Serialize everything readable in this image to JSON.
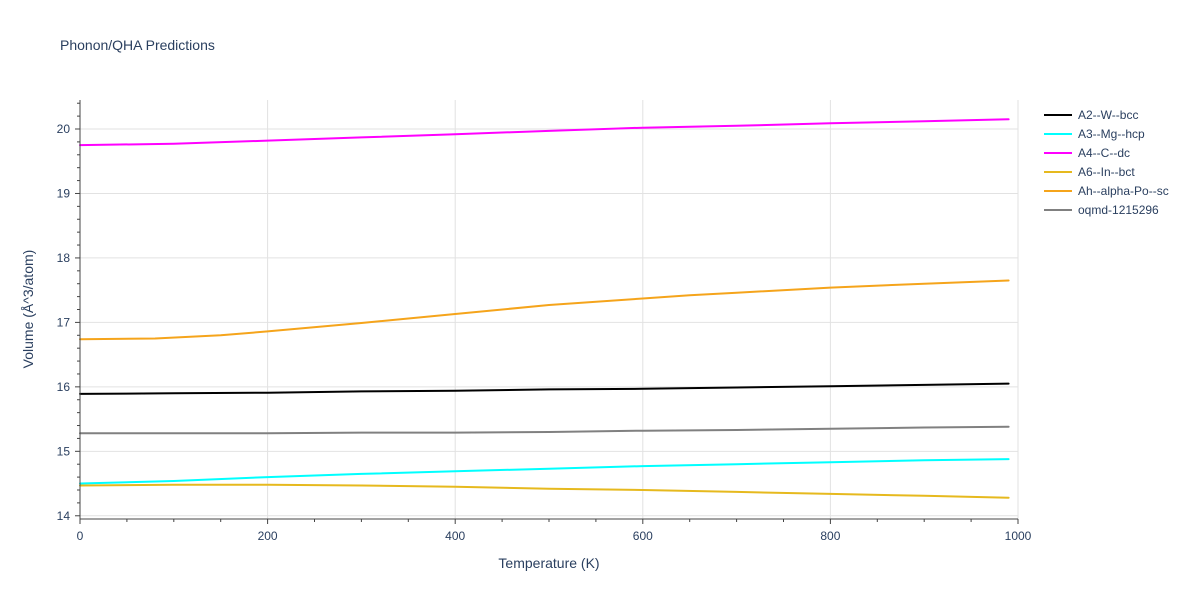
{
  "chart_data": {
    "type": "line",
    "title": "Phonon/QHA Predictions",
    "xlabel": "Temperature (K)",
    "ylabel": "Volume (Å^3/atom)",
    "xlim": [
      0,
      1000
    ],
    "ylim": [
      13.95,
      20.45
    ],
    "xticks": [
      0,
      200,
      400,
      600,
      800,
      1000
    ],
    "yticks": [
      14,
      15,
      16,
      17,
      18,
      19,
      20
    ],
    "grid": true,
    "legend_position": "top-right",
    "series": [
      {
        "name": "A2--W--bcc",
        "color": "#000000",
        "x": [
          0,
          100,
          200,
          300,
          400,
          500,
          600,
          700,
          800,
          900,
          990
        ],
        "y": [
          15.89,
          15.9,
          15.91,
          15.93,
          15.94,
          15.96,
          15.97,
          15.99,
          16.01,
          16.03,
          16.05
        ]
      },
      {
        "name": "A3--Mg--hcp",
        "color": "#00ffff",
        "x": [
          0,
          100,
          200,
          300,
          400,
          500,
          600,
          700,
          800,
          900,
          990
        ],
        "y": [
          14.5,
          14.54,
          14.6,
          14.65,
          14.69,
          14.73,
          14.77,
          14.8,
          14.83,
          14.86,
          14.88
        ]
      },
      {
        "name": "A4--C--dc",
        "color": "#ff00ff",
        "x": [
          0,
          100,
          200,
          300,
          400,
          500,
          600,
          700,
          800,
          900,
          990
        ],
        "y": [
          19.75,
          19.77,
          19.82,
          19.87,
          19.92,
          19.97,
          20.02,
          20.05,
          20.09,
          20.12,
          20.15
        ]
      },
      {
        "name": "A6--In--bct",
        "color": "#e6b91e",
        "x": [
          0,
          100,
          200,
          300,
          400,
          500,
          600,
          700,
          800,
          900,
          990
        ],
        "y": [
          14.47,
          14.48,
          14.48,
          14.47,
          14.45,
          14.42,
          14.4,
          14.37,
          14.34,
          14.31,
          14.28
        ]
      },
      {
        "name": "Ah--alpha-Po--sc",
        "color": "#f5a41b",
        "x": [
          0,
          80,
          150,
          200,
          300,
          400,
          500,
          600,
          650,
          700,
          800,
          900,
          990
        ],
        "y": [
          16.74,
          16.75,
          16.8,
          16.86,
          16.99,
          17.13,
          17.27,
          17.37,
          17.42,
          17.46,
          17.54,
          17.6,
          17.65
        ]
      },
      {
        "name": "oqmd-1215296",
        "color": "#808080",
        "x": [
          0,
          100,
          200,
          300,
          400,
          500,
          600,
          700,
          800,
          900,
          990
        ],
        "y": [
          15.28,
          15.28,
          15.28,
          15.29,
          15.29,
          15.3,
          15.32,
          15.33,
          15.35,
          15.37,
          15.38
        ]
      }
    ]
  }
}
